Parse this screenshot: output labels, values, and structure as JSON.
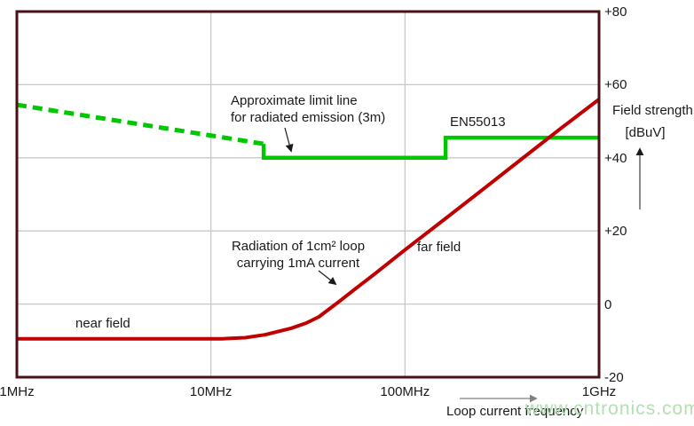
{
  "watermark": "www.cntronics.com",
  "colors": {
    "limit_green": "#00c800",
    "curve_red": "#c00000",
    "frame": "#4b1016",
    "grid": "#c8c8c8",
    "text": "#1a1a1a",
    "arrow_gray": "#808080",
    "watermark_green": "#b3e0b3"
  },
  "annotations": {
    "limit_line_label": {
      "line1": "Approximate limit line",
      "line2": "for radiated emission (3m)"
    },
    "en55013_label": "EN55013",
    "radiation_label": {
      "line1": "Radiation of 1cm² loop",
      "line2": "carrying 1mA current"
    },
    "near_field_label": "near field",
    "far_field_label": "far field",
    "y_axis_title": {
      "line1": "Field strength",
      "line2": "[dBuV]"
    },
    "x_axis_title": "Loop current frequency"
  },
  "chart_data": {
    "type": "line",
    "title": "",
    "xlabel": "Loop current frequency",
    "ylabel": "Field strength [dBuV]",
    "x_scale": "log",
    "x_unit": "MHz",
    "xlim": [
      1,
      1000
    ],
    "ylim": [
      -20,
      80
    ],
    "grid": true,
    "x_ticks": [
      {
        "value": 1,
        "label": "1MHz"
      },
      {
        "value": 10,
        "label": "10MHz"
      },
      {
        "value": 100,
        "label": "100MHz"
      },
      {
        "value": 1000,
        "label": "1GHz"
      }
    ],
    "y_ticks": [
      {
        "value": 80,
        "label": "+80"
      },
      {
        "value": 60,
        "label": "+60"
      },
      {
        "value": 40,
        "label": "+40"
      },
      {
        "value": 20,
        "label": "+20"
      },
      {
        "value": 0,
        "label": "0"
      },
      {
        "value": -20,
        "label": "-20"
      }
    ],
    "series": [
      {
        "id": "limit-line-dashed",
        "name": "Approximate limit line (extrapolated, dashed)",
        "style": "dashed",
        "color": "#00c800",
        "points": [
          [
            1,
            54.5
          ],
          [
            18.7,
            43.8
          ]
        ]
      },
      {
        "id": "limit-line-solid",
        "name": "EN55013 approximate limit line for radiated emission (3m)",
        "style": "solid",
        "color": "#00c800",
        "points": [
          [
            18.7,
            43.8
          ],
          [
            18.7,
            40
          ],
          [
            162,
            40
          ],
          [
            162,
            45.5
          ],
          [
            1000,
            45.5
          ]
        ]
      },
      {
        "id": "radiation-curve",
        "name": "Radiation of 1cm² loop carrying 1mA current",
        "style": "solid",
        "color": "#c00000",
        "points": [
          [
            1,
            -9.5
          ],
          [
            11.4,
            -9.5
          ],
          [
            15,
            -9.2
          ],
          [
            19,
            -8.4
          ],
          [
            26,
            -6.6
          ],
          [
            31,
            -5.2
          ],
          [
            36,
            -3.5
          ],
          [
            45,
            0.4
          ],
          [
            55,
            4
          ],
          [
            70,
            8.3
          ],
          [
            100,
            14.8
          ],
          [
            160,
            23.2
          ],
          [
            250,
            31.2
          ],
          [
            400,
            39.7
          ],
          [
            630,
            47.9
          ],
          [
            1000,
            56
          ]
        ]
      }
    ]
  }
}
